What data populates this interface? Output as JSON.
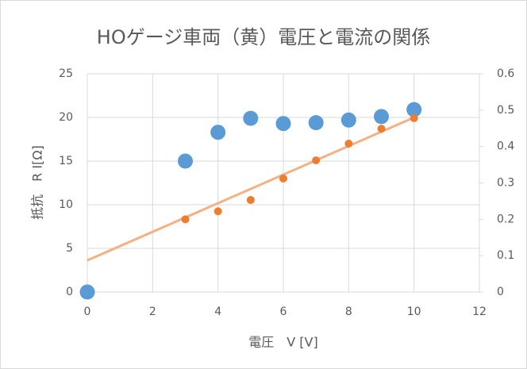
{
  "chart_data": {
    "type": "scatter",
    "title": "HOゲージ車両（黄）電圧と電流の関係",
    "x_label": "電圧　V [V]",
    "y_label": "抵抗　R I[Ω]",
    "xlim": [
      0,
      12
    ],
    "xticks": [
      0,
      2,
      4,
      6,
      8,
      10,
      12
    ],
    "ylim": [
      0,
      25
    ],
    "yticks": [
      0,
      5,
      10,
      15,
      20,
      25
    ],
    "y2lim": [
      0,
      0.6
    ],
    "y2ticks": [
      0,
      0.1,
      0.2,
      0.3,
      0.4,
      0.5,
      0.6
    ],
    "grid": true,
    "series": [
      {
        "color": "#5b9bd5",
        "x": [
          0,
          3,
          4,
          5,
          6,
          7,
          8,
          9,
          10
        ],
        "values": [
          0,
          15,
          18.3,
          19.9,
          19.3,
          19.4,
          19.7,
          20.1,
          20.9
        ]
      },
      {
        "color": "#ed7d31",
        "axis": "y2",
        "x": [
          3,
          4,
          5,
          6,
          7,
          8,
          9,
          10
        ],
        "values": [
          0.2,
          0.222,
          0.253,
          0.312,
          0.362,
          0.408,
          0.449,
          0.478
        ]
      }
    ],
    "trendline": {
      "color": "#f4b183",
      "axis": "y2",
      "x": [
        0,
        10
      ],
      "values": [
        0.087,
        0.48
      ]
    }
  }
}
